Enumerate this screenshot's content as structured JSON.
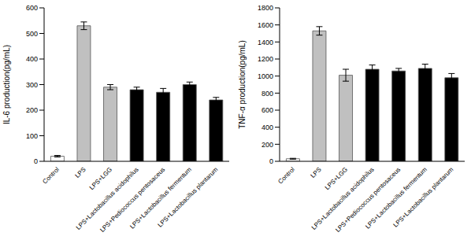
{
  "chart_data": [
    {
      "type": "bar",
      "ylabel": "IL-6 production(pg/mL)",
      "categories": [
        "Control",
        "LPS",
        "LPS+LGG",
        "LPS+Lactobacillus acidophilus",
        "LPS+Pediococcus pentosaceus",
        "LPS+Lactobacillus fermentum",
        "LPS+Lactobacillus plantarum"
      ],
      "values": [
        20,
        530,
        290,
        280,
        270,
        300,
        240
      ],
      "errors": [
        3,
        15,
        10,
        10,
        15,
        10,
        10
      ],
      "colors": [
        "#ffffff",
        "#c0c0c0",
        "#c0c0c0",
        "#000000",
        "#000000",
        "#000000",
        "#000000"
      ],
      "ylim": [
        0,
        600
      ],
      "yticks": [
        0,
        100,
        200,
        300,
        400,
        500,
        600
      ]
    },
    {
      "type": "bar",
      "ylabel": "TNF-α production(pg/mL)",
      "categories": [
        "Control",
        "LPS",
        "LPS+LGG",
        "LPS+Lactobacillus acidophilus",
        "LPS+Pediococcus pentosaceus",
        "LPS+Lactobacillus fermentum",
        "LPS+Lactobacillus plantarum"
      ],
      "values": [
        30,
        1530,
        1010,
        1080,
        1060,
        1090,
        980
      ],
      "errors": [
        5,
        50,
        70,
        50,
        30,
        50,
        50
      ],
      "colors": [
        "#ffffff",
        "#c0c0c0",
        "#c0c0c0",
        "#000000",
        "#000000",
        "#000000",
        "#000000"
      ],
      "ylim": [
        0,
        1800
      ],
      "yticks": [
        0,
        200,
        400,
        600,
        800,
        1000,
        1200,
        1400,
        1600,
        1800
      ]
    }
  ]
}
